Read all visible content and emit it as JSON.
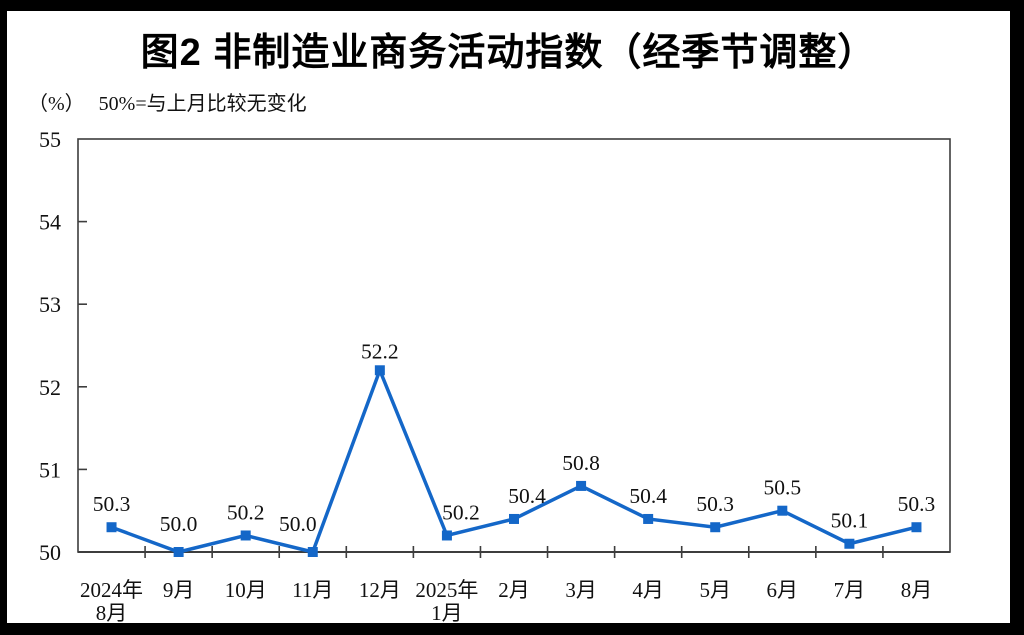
{
  "page": {
    "title": "图2  非制造业商务活动指数（经季节调整）",
    "unit_label": "（%）",
    "reference_note": "50%=与上月比较无变化"
  },
  "chart_data": {
    "type": "line",
    "title": "图2  非制造业商务活动指数（经季节调整）",
    "xlabel": "",
    "ylabel": "（%）",
    "subtitle": "50%=与上月比较无变化",
    "categories": [
      "2024年\n8月",
      "9月",
      "10月",
      "11月",
      "12月",
      "2025年\n1月",
      "2月",
      "3月",
      "4月",
      "5月",
      "6月",
      "7月",
      "8月"
    ],
    "values": [
      50.3,
      50.0,
      50.2,
      50.0,
      52.2,
      50.2,
      50.4,
      50.8,
      50.4,
      50.3,
      50.5,
      50.1,
      50.3
    ],
    "data_labels": [
      "50.3",
      "50.0",
      "50.2",
      "50.0",
      "52.2",
      "50.2",
      "50.4",
      "50.8",
      "50.4",
      "50.3",
      "50.5",
      "50.1",
      "50.3"
    ],
    "ylim": [
      50,
      55
    ],
    "yticks": [
      50,
      51,
      52,
      53,
      54,
      55
    ],
    "grid": false,
    "legend": null,
    "line_color": "#1467C8",
    "marker": "square",
    "axis_color": "#3d3d3d",
    "text_color": "#111111",
    "frame_color": "#000000",
    "background_color": "#ffffff"
  }
}
